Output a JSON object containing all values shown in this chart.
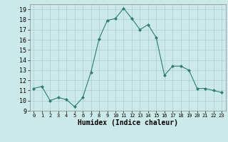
{
  "x": [
    0,
    1,
    2,
    3,
    4,
    5,
    6,
    7,
    8,
    9,
    10,
    11,
    12,
    13,
    14,
    15,
    16,
    17,
    18,
    19,
    20,
    21,
    22,
    23
  ],
  "y": [
    11.2,
    11.4,
    10.0,
    10.3,
    10.1,
    9.4,
    10.3,
    12.8,
    16.1,
    17.9,
    18.1,
    19.1,
    18.1,
    17.0,
    17.5,
    16.2,
    12.5,
    13.4,
    13.4,
    13.0,
    11.2,
    11.2,
    11.0,
    10.8
  ],
  "line_color": "#2e7d6e",
  "marker": "D",
  "marker_size": 2.0,
  "bg_color": "#cce9e9",
  "grid_color": "#aacece",
  "xlabel": "Humidex (Indice chaleur)",
  "xlim": [
    -0.5,
    23.5
  ],
  "ylim": [
    9,
    19.5
  ],
  "yticks": [
    9,
    10,
    11,
    12,
    13,
    14,
    15,
    16,
    17,
    18,
    19
  ],
  "xticks": [
    0,
    1,
    2,
    3,
    4,
    5,
    6,
    7,
    8,
    9,
    10,
    11,
    12,
    13,
    14,
    15,
    16,
    17,
    18,
    19,
    20,
    21,
    22,
    23
  ]
}
